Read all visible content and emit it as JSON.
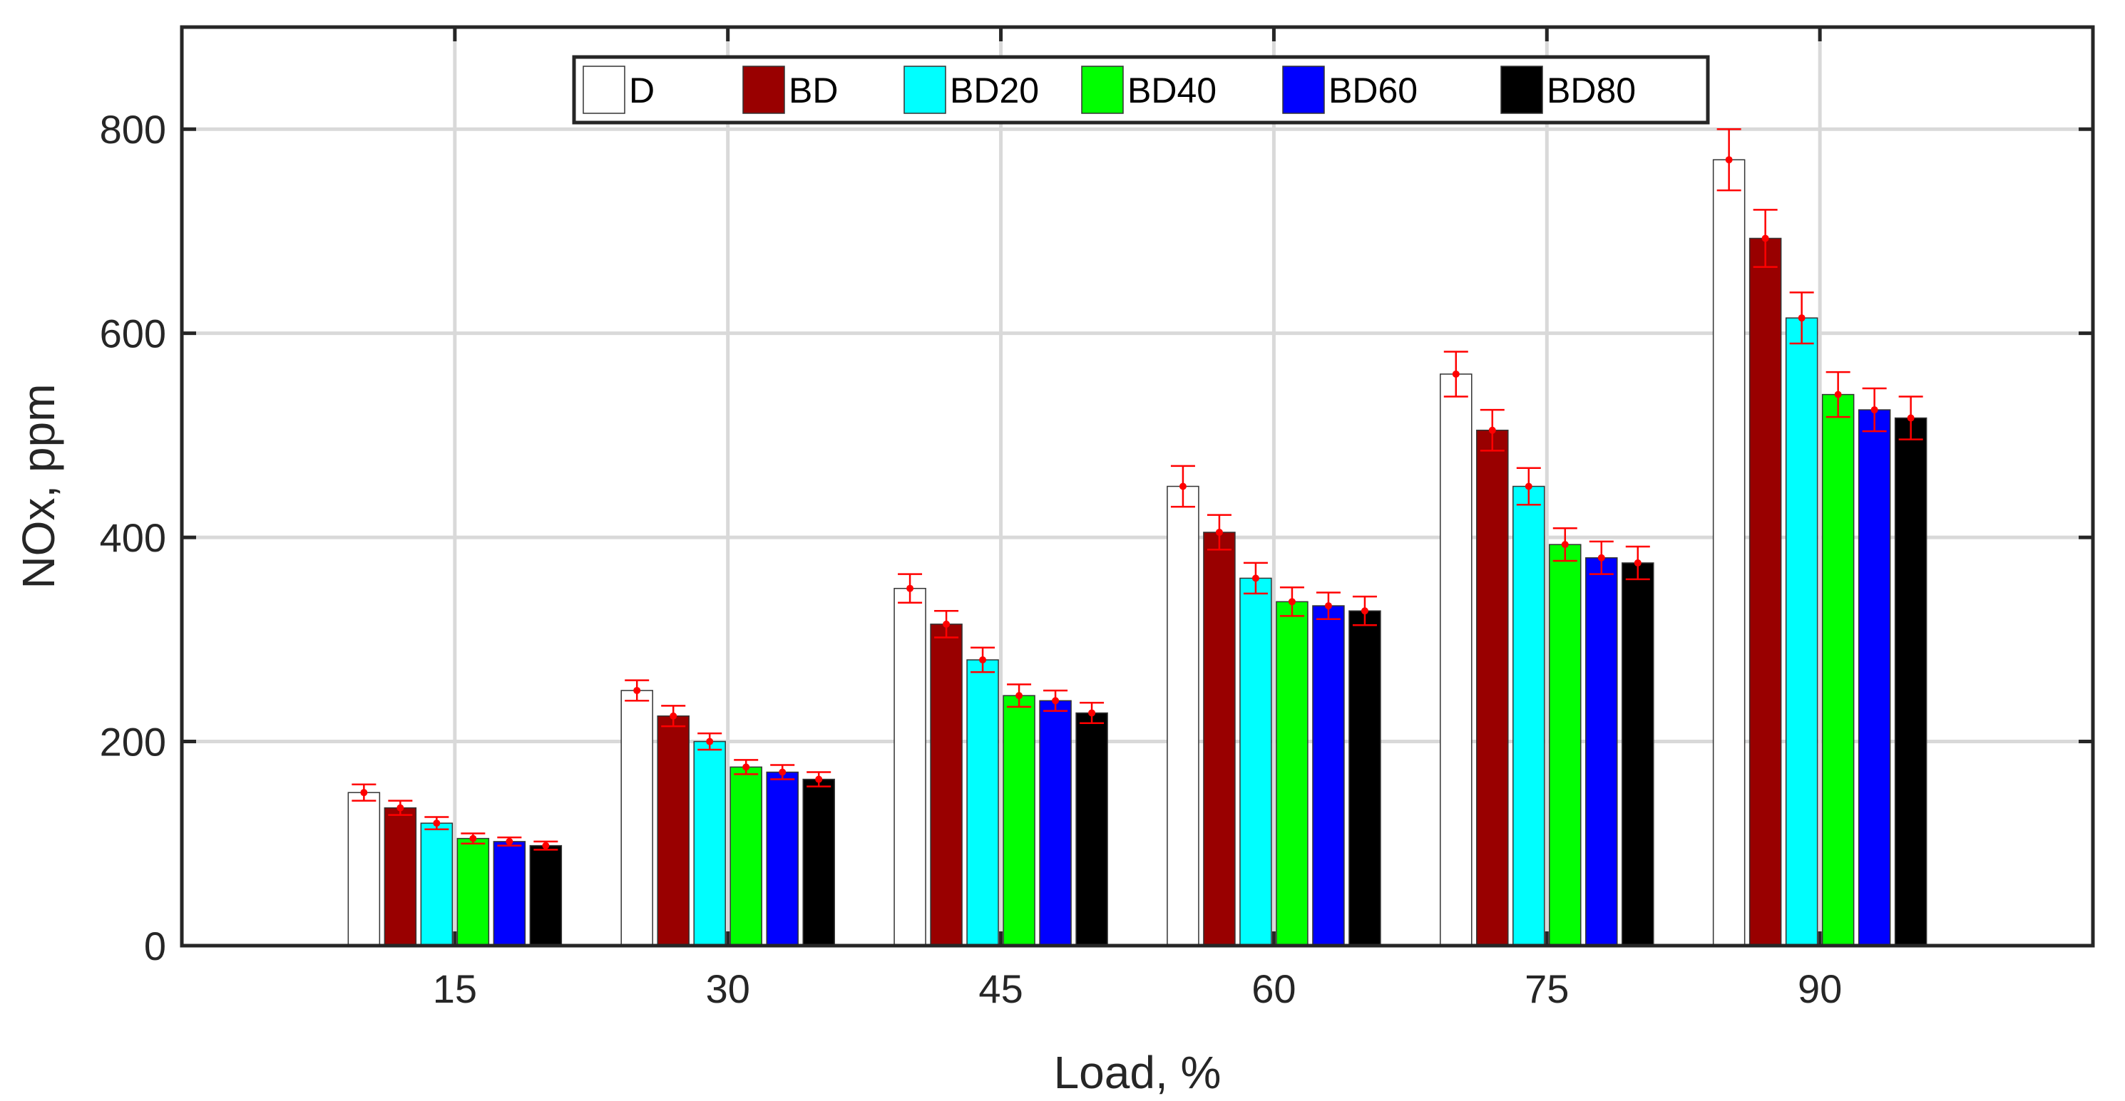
{
  "chart_data": {
    "type": "bar",
    "title": "",
    "xlabel": "Load, %",
    "ylabel": "NOx, ppm",
    "categories": [
      "15",
      "30",
      "45",
      "60",
      "75",
      "90"
    ],
    "ylim": [
      0,
      900
    ],
    "yticks": [
      0,
      200,
      400,
      600,
      800
    ],
    "grid": true,
    "legend_position": "top-center",
    "error_bars": true,
    "series": [
      {
        "name": "D",
        "color": "#ffffff",
        "values": [
          150,
          250,
          350,
          450,
          560,
          770
        ],
        "errors": [
          8,
          10,
          14,
          20,
          22,
          30
        ]
      },
      {
        "name": "BD",
        "color": "#990000",
        "values": [
          135,
          225,
          315,
          405,
          505,
          693
        ],
        "errors": [
          7,
          10,
          13,
          17,
          20,
          28
        ]
      },
      {
        "name": "BD20",
        "color": "#00ffff",
        "values": [
          120,
          200,
          280,
          360,
          450,
          615
        ],
        "errors": [
          6,
          8,
          12,
          15,
          18,
          25
        ]
      },
      {
        "name": "BD40",
        "color": "#00ff00",
        "values": [
          105,
          175,
          245,
          337,
          393,
          540
        ],
        "errors": [
          5,
          7,
          11,
          14,
          16,
          22
        ]
      },
      {
        "name": "BD60",
        "color": "#0000ff",
        "values": [
          102,
          170,
          240,
          333,
          380,
          525
        ],
        "errors": [
          4,
          7,
          10,
          13,
          16,
          21
        ]
      },
      {
        "name": "BD80",
        "color": "#000000",
        "values": [
          98,
          163,
          228,
          328,
          375,
          517
        ],
        "errors": [
          4,
          7,
          10,
          14,
          16,
          21
        ]
      }
    ]
  }
}
